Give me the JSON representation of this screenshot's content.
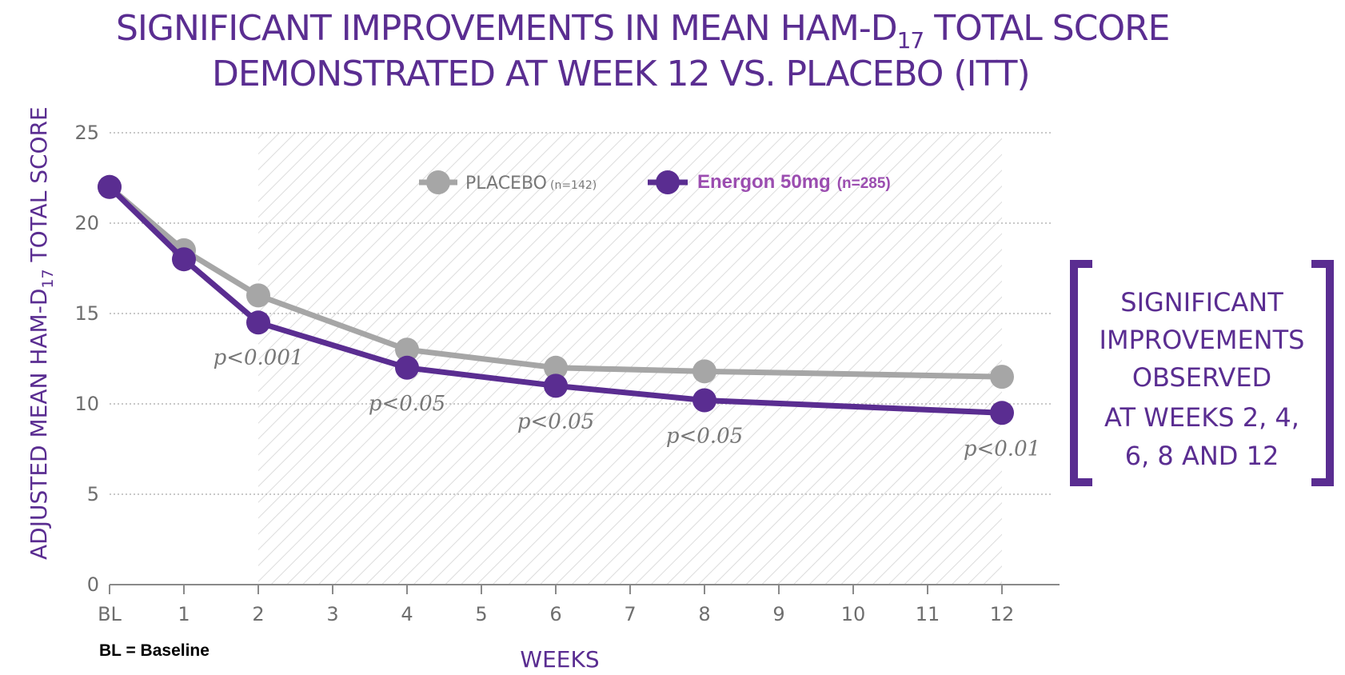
{
  "title_line1": "SIGNIFICANT IMPROVEMENTS IN MEAN HAM-D",
  "title_line1_sub": "17",
  "title_line1_end": " TOTAL SCORE",
  "title_line2": "DEMONSTRATED AT WEEK 12 VS. PLACEBO (ITT)",
  "footnote": "BL = Baseline",
  "side_box": {
    "lines": [
      "SIGNIFICANT",
      "IMPROVEMENTS",
      "OBSERVED",
      "AT WEEKS 2, 4,",
      "6, 8 AND 12"
    ]
  },
  "chart_data": {
    "type": "line",
    "xlabel": "WEEKS",
    "ylabel_main": "ADJUSTED MEAN HAM-D",
    "ylabel_sub": "17",
    "ylabel_end": " TOTAL SCORE",
    "ylim": [
      0,
      25
    ],
    "yticks": [
      0,
      5,
      10,
      15,
      20,
      25
    ],
    "xticks": [
      "BL",
      "1",
      "2",
      "3",
      "4",
      "5",
      "6",
      "7",
      "8",
      "9",
      "10",
      "11",
      "12"
    ],
    "grid": true,
    "shaded_region_weeks": [
      2,
      12
    ],
    "series": [
      {
        "name": "PLACEBO",
        "n_label": "(n=142)",
        "color": "#a6a6a6",
        "x": [
          "BL",
          "1",
          "2",
          "4",
          "6",
          "8",
          "12"
        ],
        "values": [
          22.0,
          18.5,
          16.0,
          13.0,
          12.0,
          11.8,
          11.5
        ]
      },
      {
        "name": "Energon 50mg",
        "n_label": "(n=285)",
        "color": "#5a2d91",
        "x": [
          "BL",
          "1",
          "2",
          "4",
          "6",
          "8",
          "12"
        ],
        "values": [
          22.0,
          18.0,
          14.5,
          12.0,
          11.0,
          10.2,
          9.5
        ]
      }
    ],
    "annotations": [
      {
        "x": "2",
        "text": "p<0.001"
      },
      {
        "x": "4",
        "text": "p<0.05"
      },
      {
        "x": "6",
        "text": "p<0.05"
      },
      {
        "x": "8",
        "text": "p<0.05"
      },
      {
        "x": "12",
        "text": "p<0.01"
      }
    ]
  }
}
